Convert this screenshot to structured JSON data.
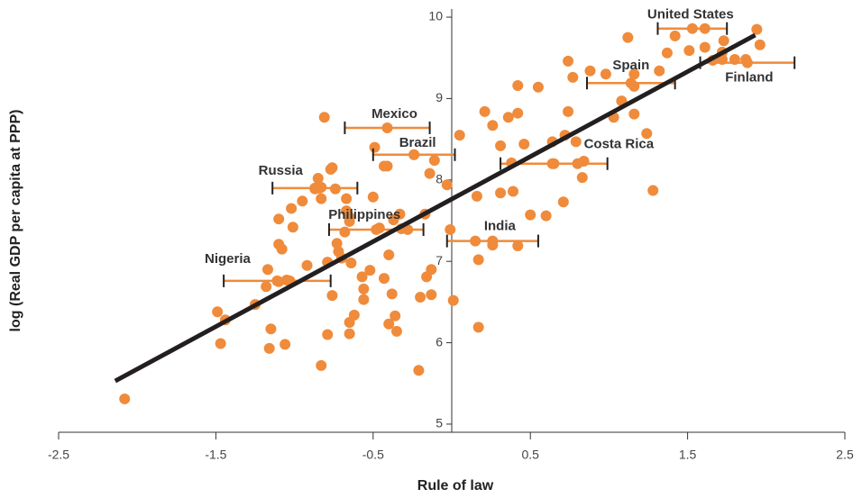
{
  "chart_data": {
    "type": "scatter",
    "x_label": "Rule of law",
    "y_label": "log (Real GDP per capita at PPP)",
    "xlim": [
      -2.5,
      2.5
    ],
    "ylim": [
      4.9,
      10.1
    ],
    "xticks": [
      -2.5,
      -1.5,
      -0.5,
      0.5,
      1.5,
      2.5
    ],
    "yticks": [
      5,
      6,
      7,
      8,
      9,
      10
    ],
    "color": "#ef8b3b",
    "x": [
      -2.08,
      -1.49,
      -1.44,
      -1.47,
      -1.25,
      -1.17,
      -1.18,
      -1.15,
      -1.16,
      -1.06,
      -1.1,
      -1.08,
      -1.1,
      -1.05,
      -1.03,
      -1.1,
      -1.01,
      -1.02,
      -0.95,
      -0.92,
      -0.87,
      -0.84,
      -0.83,
      -0.76,
      -0.85,
      -0.81,
      -0.83,
      -0.74,
      -0.77,
      -0.79,
      -0.76,
      -0.79,
      -0.83,
      -0.73,
      -0.72,
      -0.7,
      -0.68,
      -0.67,
      -0.65,
      -0.65,
      -0.67,
      -0.64,
      -0.65,
      -0.65,
      -0.62,
      -0.57,
      -0.56,
      -0.56,
      -0.52,
      -0.5,
      -0.49,
      -0.46,
      -0.43,
      -0.43,
      -0.41,
      -0.4,
      -0.4,
      -0.38,
      -0.36,
      -0.35,
      -0.37,
      -0.33,
      -0.32,
      -0.28,
      -0.24,
      -0.2,
      -0.21,
      -0.16,
      -0.17,
      -0.14,
      -0.11,
      -0.13,
      -0.13,
      -0.03,
      -0.01,
      0.01,
      0.05,
      0.17,
      0.17,
      0.21,
      0.26,
      0.31,
      0.36,
      0.39,
      0.42,
      0.42,
      0.46,
      0.55,
      0.6,
      0.71,
      0.72,
      0.74,
      0.74,
      0.77,
      0.83,
      0.84,
      0.88,
      0.98,
      1.03,
      1.08,
      1.12,
      1.16,
      1.16,
      1.24,
      1.16,
      1.28,
      1.32,
      1.37,
      1.42,
      1.51,
      1.61,
      1.61,
      1.72,
      1.73,
      1.66,
      1.72,
      1.8,
      1.87,
      1.94,
      1.96,
      0.15,
      0.26,
      0.42,
      0.5,
      0.38,
      0.64,
      0.8,
      0.64,
      0.79,
      0.16,
      0.31
    ],
    "y": [
      5.31,
      6.38,
      6.28,
      5.99,
      6.47,
      6.9,
      6.69,
      6.17,
      5.93,
      5.98,
      7.21,
      7.15,
      6.75,
      6.77,
      6.76,
      7.52,
      7.42,
      7.65,
      7.74,
      6.95,
      7.89,
      7.9,
      7.77,
      8.15,
      8.02,
      8.77,
      7.91,
      7.89,
      8.13,
      6.99,
      6.58,
      6.1,
      5.72,
      7.22,
      7.12,
      7.04,
      7.36,
      7.62,
      7.54,
      7.49,
      7.77,
      6.98,
      6.25,
      6.11,
      6.34,
      6.81,
      6.66,
      6.53,
      6.89,
      7.79,
      8.4,
      7.41,
      8.17,
      6.79,
      8.17,
      7.08,
      6.23,
      6.6,
      6.33,
      6.14,
      7.51,
      7.58,
      7.4,
      7.39,
      8.31,
      6.56,
      5.66,
      6.81,
      7.58,
      8.08,
      8.24,
      6.59,
      6.9,
      7.94,
      7.39,
      6.52,
      8.55,
      7.02,
      6.19,
      8.84,
      8.67,
      7.84,
      8.77,
      7.86,
      9.16,
      8.82,
      8.44,
      9.14,
      7.56,
      7.73,
      8.55,
      8.84,
      9.46,
      9.26,
      8.03,
      8.23,
      9.34,
      9.3,
      8.77,
      8.97,
      9.75,
      9.15,
      8.81,
      8.57,
      9.3,
      7.87,
      9.34,
      9.56,
      9.77,
      9.59,
      9.63,
      9.86,
      9.57,
      9.71,
      9.47,
      9.48,
      9.48,
      9.48,
      9.85,
      9.66,
      7.25,
      7.2,
      7.19,
      7.57,
      8.21,
      8.2,
      8.2,
      8.47,
      8.47,
      7.8,
      8.42
    ],
    "labeled_points": [
      {
        "label": "United States",
        "x": 1.53,
        "y": 9.86,
        "xerr": 0.22
      },
      {
        "label": "Spain",
        "x": 1.14,
        "y": 9.19,
        "xerr": 0.28
      },
      {
        "label": "Finland",
        "x": 1.88,
        "y": 9.44,
        "xerr": 0.3
      },
      {
        "label": "Costa Rica",
        "x": 0.65,
        "y": 8.2,
        "xerr": 0.34
      },
      {
        "label": "India",
        "x": 0.26,
        "y": 7.25,
        "xerr": 0.29
      },
      {
        "label": "Mexico",
        "x": -0.41,
        "y": 8.64,
        "xerr": 0.27
      },
      {
        "label": "Brazil",
        "x": -0.24,
        "y": 8.31,
        "xerr": 0.26
      },
      {
        "label": "Russia",
        "x": -0.87,
        "y": 7.9,
        "xerr": 0.27
      },
      {
        "label": "Philippines",
        "x": -0.48,
        "y": 7.39,
        "xerr": 0.3
      },
      {
        "label": "Nigeria",
        "x": -1.11,
        "y": 6.76,
        "xerr": 0.34
      }
    ],
    "trend_line": {
      "x": [
        -2.14,
        1.93
      ],
      "y": [
        5.53,
        9.78
      ],
      "color": "#231f20"
    }
  }
}
